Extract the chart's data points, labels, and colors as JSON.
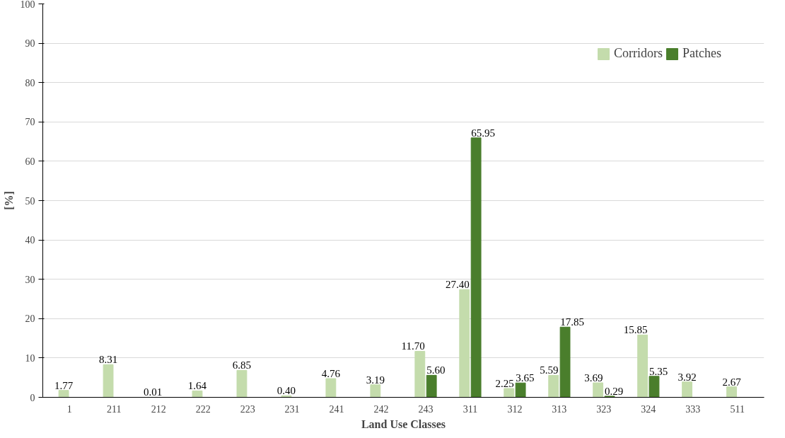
{
  "chart_data": {
    "type": "bar",
    "xlabel": "Land Use Classes",
    "ylabel": "[%]",
    "categories": [
      "1",
      "211",
      "212",
      "222",
      "223",
      "231",
      "241",
      "242",
      "243",
      "311",
      "312",
      "313",
      "323",
      "324",
      "333",
      "511"
    ],
    "series": [
      {
        "name": "Corridors",
        "color": "#c4dcac",
        "values": [
          1.77,
          8.31,
          0.01,
          1.64,
          6.85,
          0.4,
          4.76,
          3.19,
          11.7,
          27.4,
          2.25,
          5.59,
          3.69,
          15.85,
          3.92,
          2.67
        ],
        "value_labels": [
          "1.77",
          "8.31",
          "0.01",
          "1.64",
          "6.85",
          "0.40",
          "4.76",
          "3.19",
          "11.70",
          "27.40",
          "2.25",
          "5.59",
          "3.69",
          "15.85",
          "3.92",
          "2.67"
        ]
      },
      {
        "name": "Patches",
        "color": "#4a7e2c",
        "values": [
          null,
          null,
          null,
          null,
          null,
          null,
          null,
          null,
          5.6,
          65.95,
          3.65,
          17.85,
          0.29,
          5.35,
          null,
          null
        ],
        "value_labels": [
          null,
          null,
          null,
          null,
          null,
          null,
          null,
          null,
          "5.60",
          "65.95",
          "3.65",
          "17.85",
          "0.29",
          "5.35",
          null,
          null
        ]
      }
    ],
    "ylim": [
      0,
      100
    ],
    "yticks": [
      0,
      10,
      20,
      30,
      40,
      50,
      60,
      70,
      80,
      90,
      100
    ],
    "grid": "y",
    "legend": "top right"
  }
}
